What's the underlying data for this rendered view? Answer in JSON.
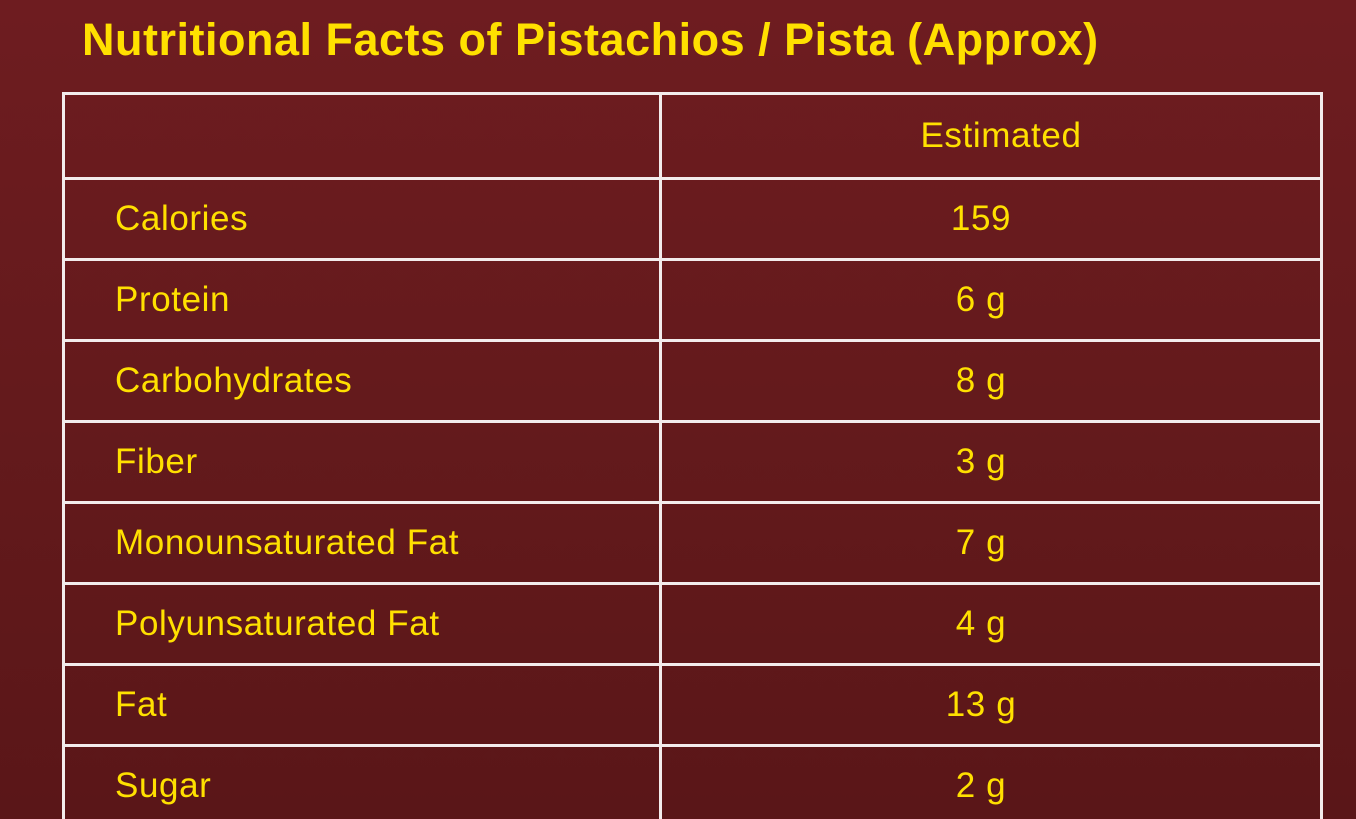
{
  "title": "Nutritional Facts of Pistachios / Pista (Approx)",
  "colors": {
    "background": "#641a1c",
    "text": "#ffe000",
    "border": "#f3ecec"
  },
  "table": {
    "header": {
      "col1": "",
      "col2": "Estimated"
    },
    "rows": [
      {
        "label": "Calories",
        "value": "159"
      },
      {
        "label": "Protein",
        "value": "6 g"
      },
      {
        "label": "Carbohydrates",
        "value": "8 g"
      },
      {
        "label": "Fiber",
        "value": "3 g"
      },
      {
        "label": "Monounsaturated Fat",
        "value": "7 g"
      },
      {
        "label": "Polyunsaturated Fat",
        "value": "4 g"
      },
      {
        "label": "Fat",
        "value": "13 g"
      },
      {
        "label": "Sugar",
        "value": "2 g"
      }
    ]
  }
}
